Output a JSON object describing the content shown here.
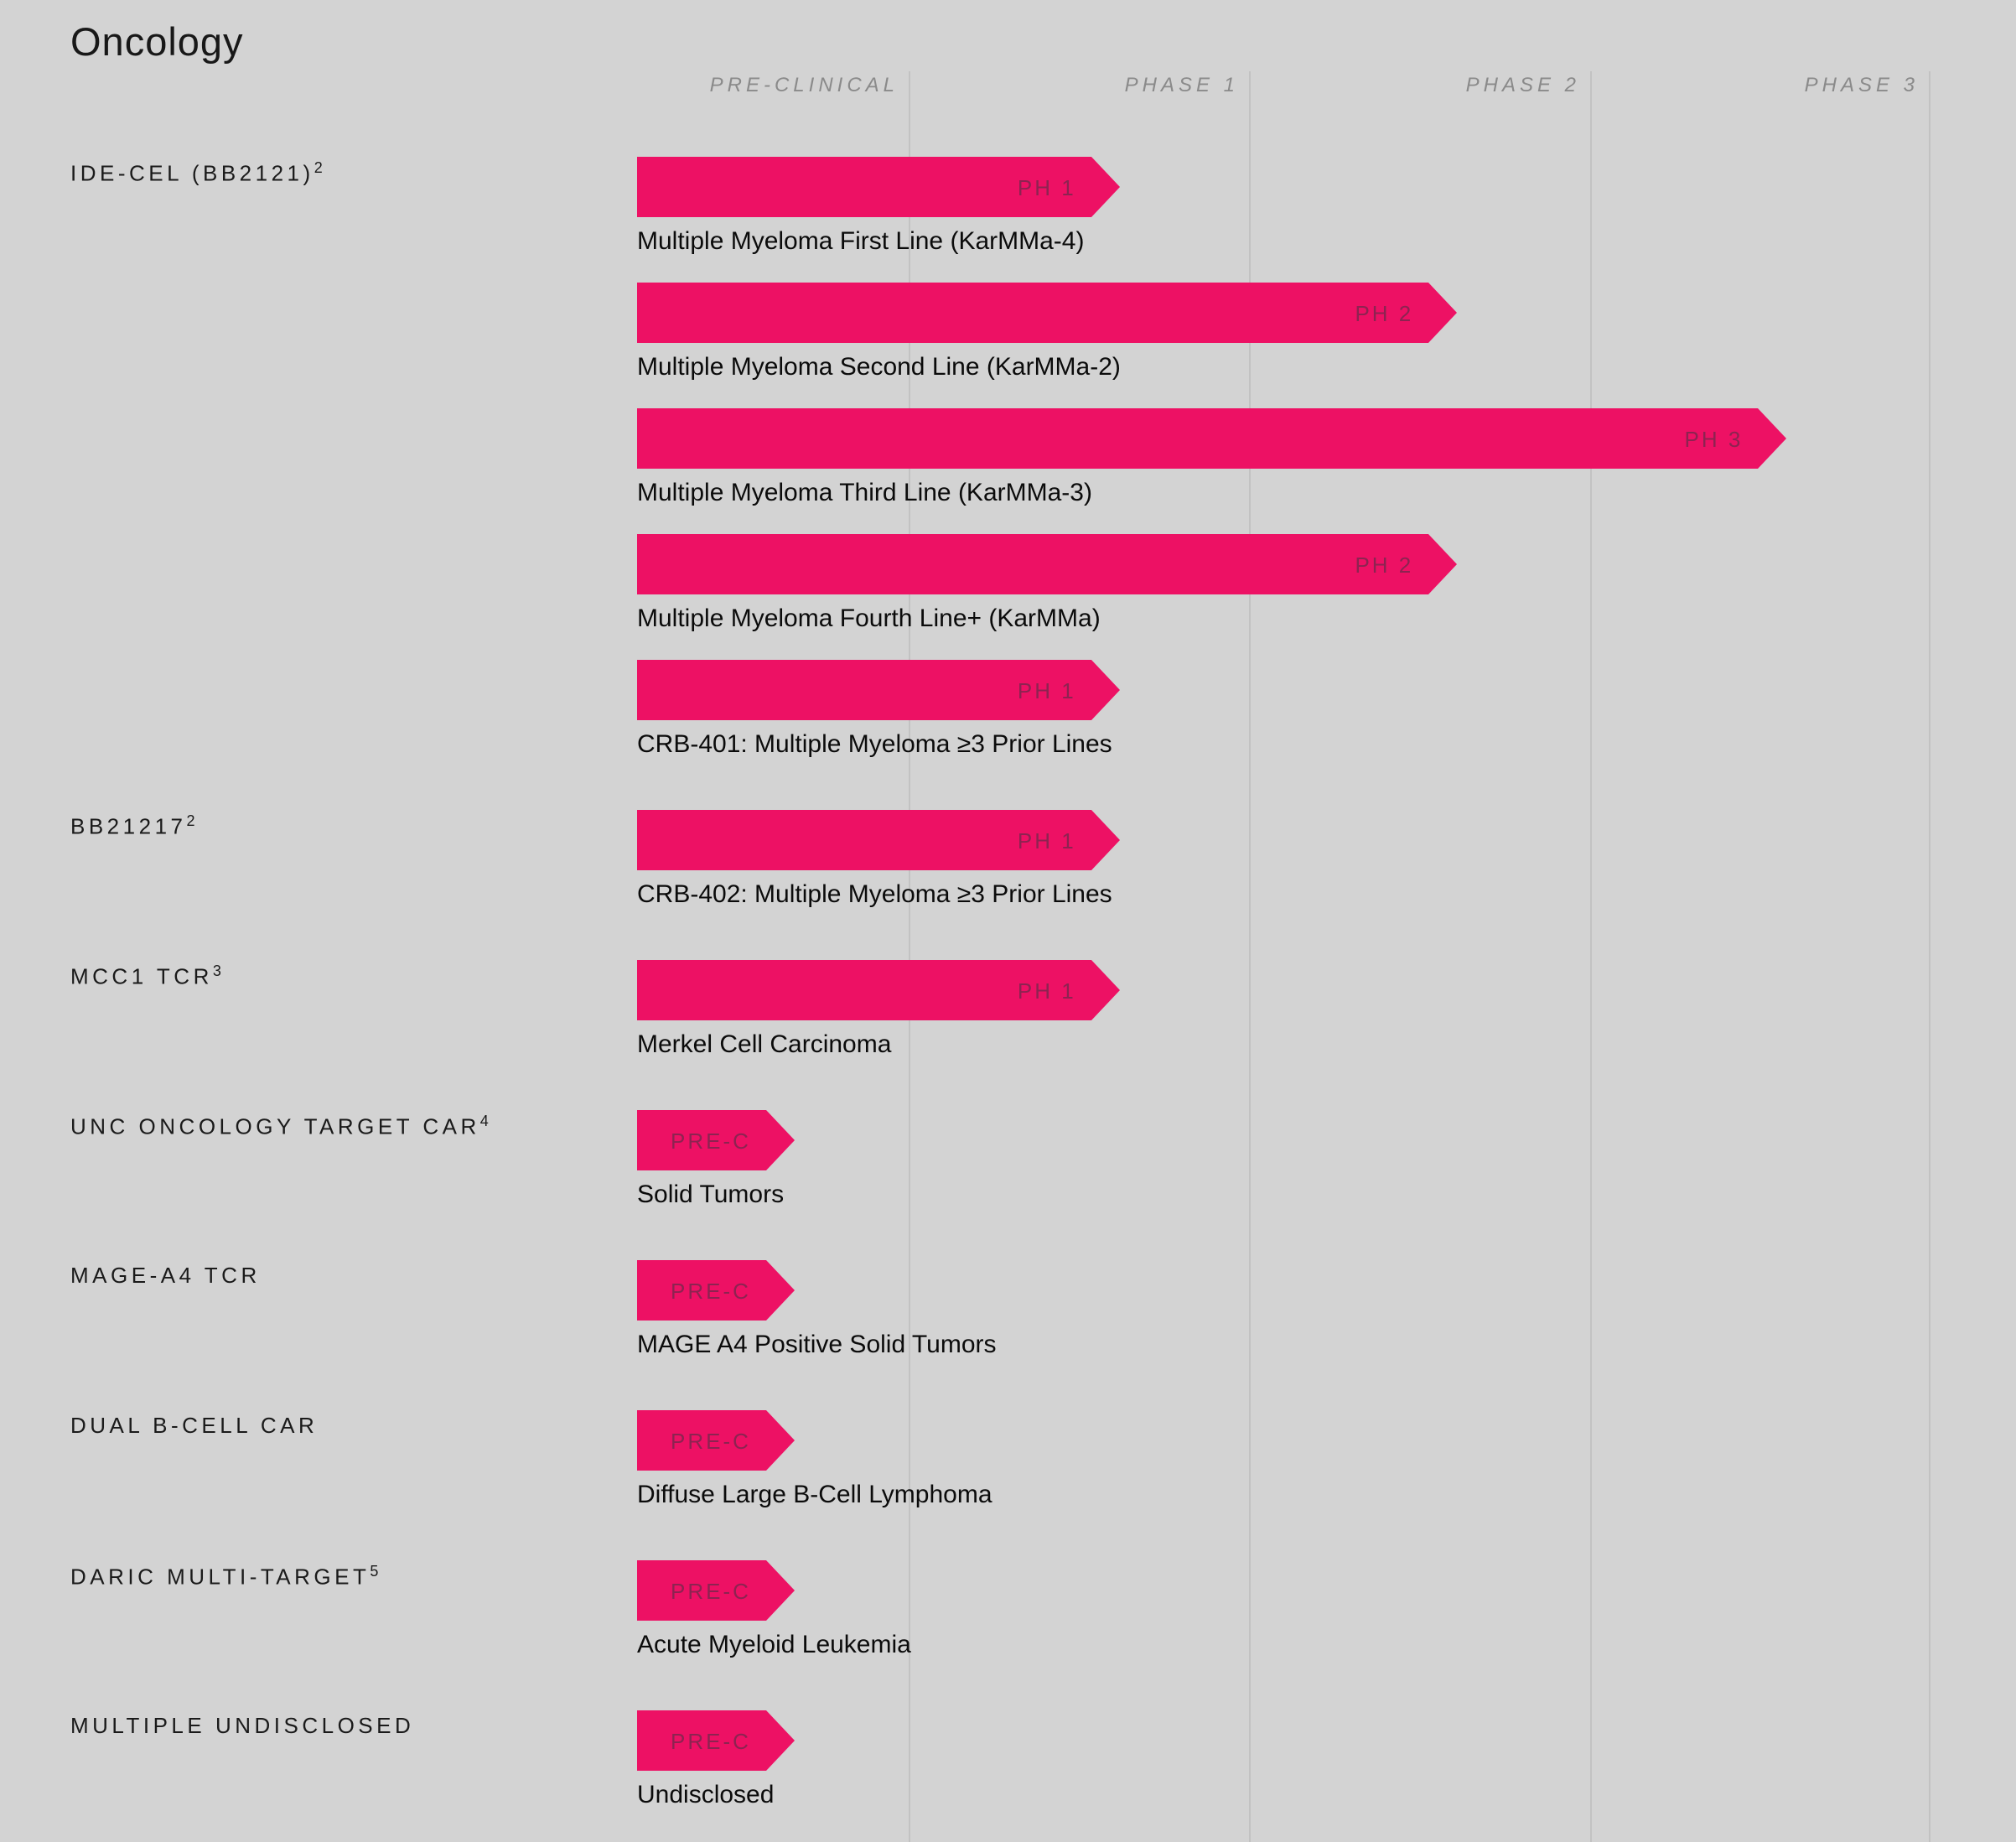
{
  "title": "Oncology",
  "phase_columns": [
    {
      "label": "PRE-CLINICAL"
    },
    {
      "label": "PHASE 1"
    },
    {
      "label": "PHASE 2"
    },
    {
      "label": "PHASE 3"
    }
  ],
  "colors": {
    "background": "#d3d3d3",
    "bar": "#ED1164",
    "bar_stage_text": "#8D2351",
    "header_text": "#8a8a8a",
    "grid_line": "#c2c2c2",
    "text": "#0b0b0b"
  },
  "groups": [
    {
      "program": "IDE-CEL (BB2121)",
      "footnote": "2",
      "trials": [
        {
          "stage_label": "PH 1",
          "stage": 1,
          "extent": 1.62,
          "indication": "Multiple Myeloma First Line (KarMMa-4)"
        },
        {
          "stage_label": "PH 2",
          "stage": 2,
          "extent": 2.61,
          "indication": "Multiple Myeloma Second Line (KarMMa-2)"
        },
        {
          "stage_label": "PH 3",
          "stage": 3,
          "extent": 3.58,
          "indication": "Multiple Myeloma Third Line (KarMMa-3)"
        },
        {
          "stage_label": "PH 2",
          "stage": 2,
          "extent": 2.61,
          "indication": "Multiple Myeloma Fourth Line+ (KarMMa)"
        },
        {
          "stage_label": "PH 1",
          "stage": 1,
          "extent": 1.62,
          "indication": "CRB-401: Multiple Myeloma ≥3 Prior Lines"
        }
      ]
    },
    {
      "program": "BB21217",
      "footnote": "2",
      "trials": [
        {
          "stage_label": "PH 1",
          "stage": 1,
          "extent": 1.62,
          "indication": "CRB-402: Multiple Myeloma ≥3 Prior Lines"
        }
      ]
    },
    {
      "program": "MCC1 TCR",
      "footnote": "3",
      "trials": [
        {
          "stage_label": "PH 1",
          "stage": 1,
          "extent": 1.62,
          "indication": "Merkel Cell Carcinoma"
        }
      ]
    },
    {
      "program": "UNC ONCOLOGY TARGET CAR",
      "footnote": "4",
      "trials": [
        {
          "stage_label": "PRE-C",
          "stage": 0,
          "extent": 0.58,
          "indication": "Solid Tumors"
        }
      ]
    },
    {
      "program": "MAGE-A4 TCR",
      "footnote": "",
      "trials": [
        {
          "stage_label": "PRE-C",
          "stage": 0,
          "extent": 0.58,
          "indication": "MAGE A4 Positive Solid Tumors"
        }
      ]
    },
    {
      "program": "DUAL B-CELL CAR",
      "footnote": "",
      "trials": [
        {
          "stage_label": "PRE-C",
          "stage": 0,
          "extent": 0.58,
          "indication": "Diffuse Large B-Cell Lymphoma"
        }
      ]
    },
    {
      "program": "DARIC MULTI-TARGET",
      "footnote": "5",
      "trials": [
        {
          "stage_label": "PRE-C",
          "stage": 0,
          "extent": 0.58,
          "indication": "Acute Myeloid Leukemia"
        }
      ]
    },
    {
      "program": "MULTIPLE UNDISCLOSED",
      "footnote": "",
      "trials": [
        {
          "stage_label": "PRE-C",
          "stage": 0,
          "extent": 0.58,
          "indication": "Undisclosed"
        }
      ]
    }
  ],
  "chart_data": {
    "type": "bar",
    "title": "Oncology",
    "orientation": "horizontal",
    "x_axis_stages": [
      "PRE-CLINICAL",
      "PHASE 1",
      "PHASE 2",
      "PHASE 3"
    ],
    "xlim": [
      0,
      4
    ],
    "grid": "vertical-stage-boundaries",
    "legend": "none",
    "categories": [
      "Multiple Myeloma First Line (KarMMa-4)",
      "Multiple Myeloma Second Line (KarMMa-2)",
      "Multiple Myeloma Third Line (KarMMa-3)",
      "Multiple Myeloma Fourth Line+ (KarMMa)",
      "CRB-401: Multiple Myeloma ≥3 Prior Lines",
      "CRB-402: Multiple Myeloma ≥3 Prior Lines",
      "Merkel Cell Carcinoma",
      "Solid Tumors",
      "MAGE A4 Positive Solid Tumors",
      "Diffuse Large B-Cell Lymphoma",
      "Acute Myeloid Leukemia",
      "Undisclosed"
    ],
    "programs": [
      "IDE-CEL (BB2121)",
      "IDE-CEL (BB2121)",
      "IDE-CEL (BB2121)",
      "IDE-CEL (BB2121)",
      "IDE-CEL (BB2121)",
      "BB21217",
      "MCC1 TCR",
      "UNC ONCOLOGY TARGET CAR",
      "MAGE-A4 TCR",
      "DUAL B-CELL CAR",
      "DARIC MULTI-TARGET",
      "MULTIPLE UNDISCLOSED"
    ],
    "stage_labels": [
      "PH 1",
      "PH 2",
      "PH 3",
      "PH 2",
      "PH 1",
      "PH 1",
      "PH 1",
      "PRE-C",
      "PRE-C",
      "PRE-C",
      "PRE-C",
      "PRE-C"
    ],
    "values": [
      1.62,
      2.61,
      3.58,
      2.61,
      1.62,
      1.62,
      1.62,
      0.58,
      0.58,
      0.58,
      0.58,
      0.58
    ]
  }
}
